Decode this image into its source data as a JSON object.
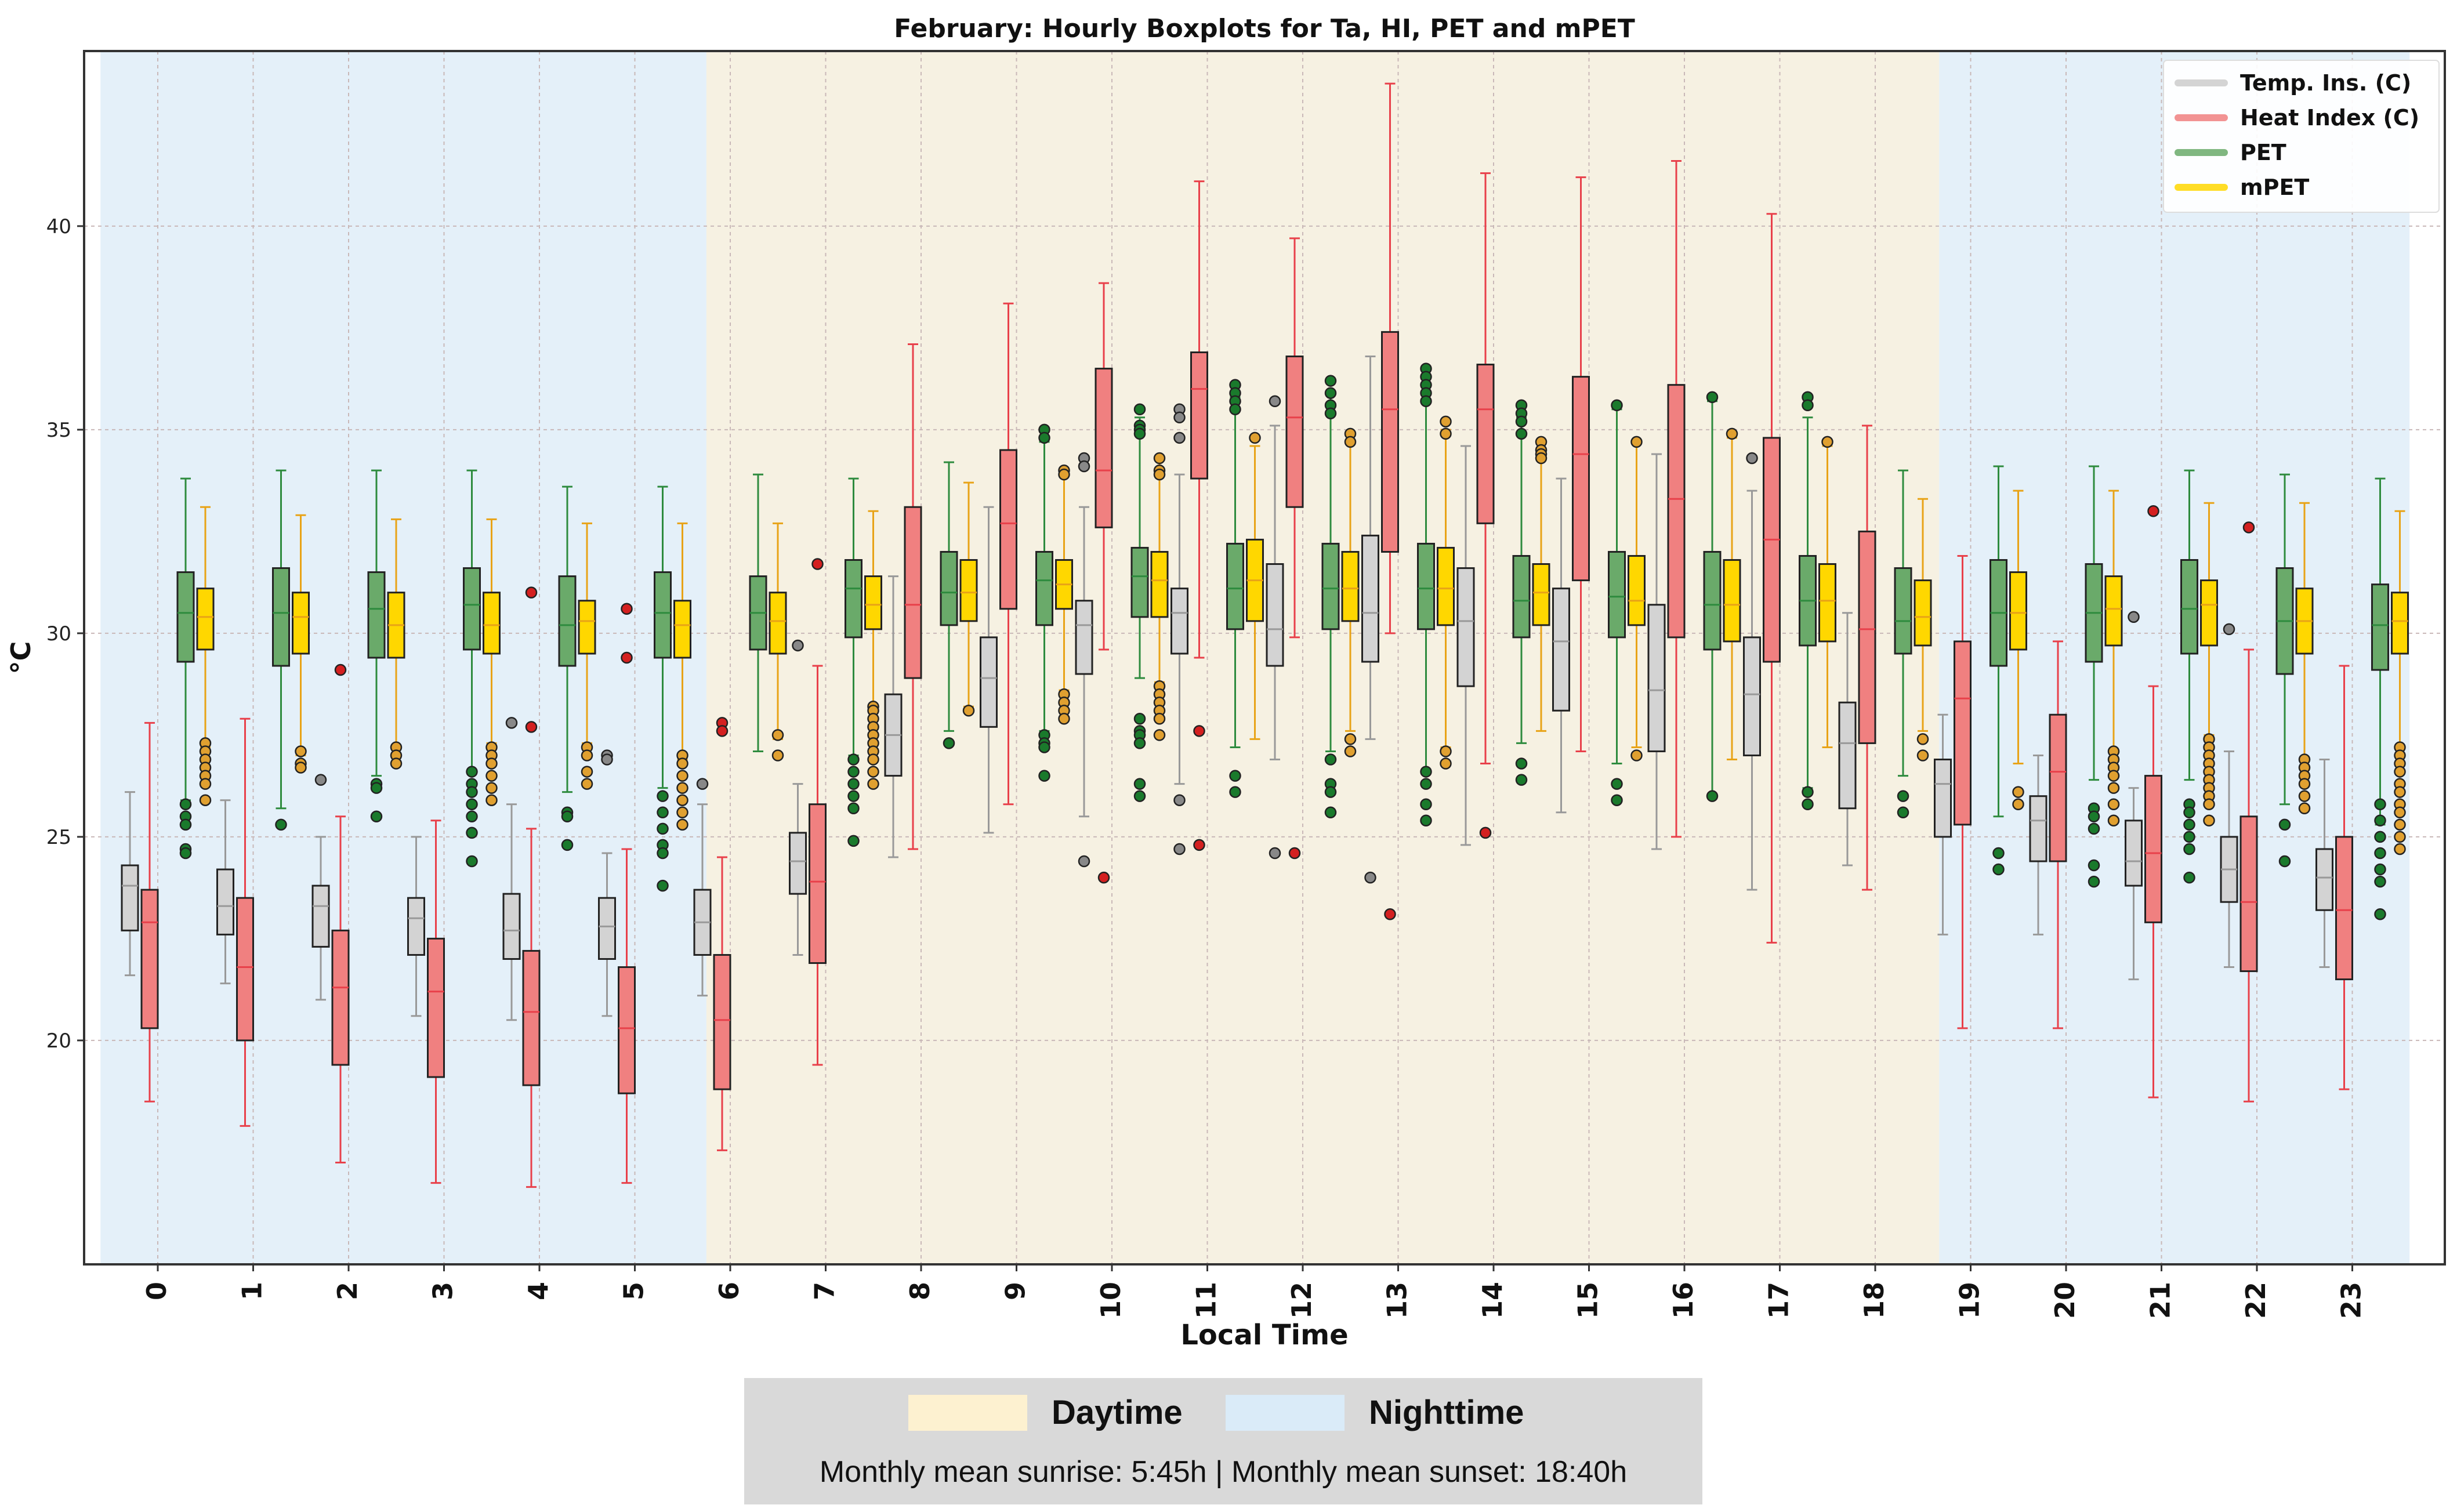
{
  "chart_data": {
    "type": "boxplot",
    "title": "February: Hourly Boxplots for Ta, HI, PET and mPET",
    "xlabel": "Local Time",
    "ylabel": "°C",
    "ylim": [
      14.5,
      44.3
    ],
    "yticks": [
      20,
      25,
      30,
      35,
      40
    ],
    "grid": true,
    "categories": [
      "0",
      "1",
      "2",
      "3",
      "4",
      "5",
      "6",
      "7",
      "8",
      "9",
      "10",
      "11",
      "12",
      "13",
      "14",
      "15",
      "16",
      "17",
      "18",
      "19",
      "20",
      "21",
      "22",
      "23"
    ],
    "background_periods": [
      {
        "name": "Nighttime",
        "from_hour": -0.6,
        "to_hour": 5.75
      },
      {
        "name": "Daytime",
        "from_hour": 5.75,
        "to_hour": 18.67
      },
      {
        "name": "Nighttime",
        "from_hour": 18.67,
        "to_hour": 23.6
      }
    ],
    "legend": {
      "placement": "top-right",
      "entries": [
        "Temp. Ins. (C)",
        "Heat Index (C)",
        "PET",
        "mPET"
      ]
    },
    "series": [
      {
        "name": "Temp. Ins. (C)",
        "short": "Ta",
        "fill": "#d3d3d3",
        "whisker": "#999999",
        "boxes": [
          [
            21.6,
            22.7,
            23.8,
            24.3,
            26.1
          ],
          [
            21.4,
            22.6,
            23.3,
            24.2,
            25.9
          ],
          [
            21.0,
            22.3,
            23.3,
            23.8,
            25.0
          ],
          [
            20.6,
            22.1,
            23.0,
            23.5,
            25.0
          ],
          [
            20.5,
            22.0,
            22.7,
            23.6,
            25.8
          ],
          [
            20.6,
            22.0,
            22.8,
            23.5,
            24.6
          ],
          [
            21.1,
            22.1,
            22.9,
            23.7,
            25.8
          ],
          [
            22.1,
            23.6,
            24.4,
            25.1,
            26.3
          ],
          [
            24.5,
            26.5,
            27.5,
            28.5,
            31.4
          ],
          [
            25.1,
            27.7,
            28.9,
            29.9,
            33.1
          ],
          [
            25.5,
            29.0,
            30.2,
            30.8,
            33.1
          ],
          [
            26.3,
            29.5,
            30.5,
            31.1,
            33.9
          ],
          [
            26.9,
            29.2,
            30.1,
            31.7,
            35.1
          ],
          [
            27.4,
            29.3,
            30.5,
            32.4,
            36.8
          ],
          [
            24.8,
            28.7,
            30.3,
            31.6,
            34.6
          ],
          [
            25.6,
            28.1,
            29.8,
            31.1,
            33.8
          ],
          [
            24.7,
            27.1,
            28.6,
            30.7,
            34.4
          ],
          [
            23.7,
            27.0,
            28.5,
            29.9,
            33.5
          ],
          [
            24.3,
            25.7,
            27.3,
            28.3,
            30.5
          ],
          [
            22.6,
            25.0,
            26.3,
            26.9,
            28.0
          ],
          [
            22.6,
            24.4,
            25.4,
            26.0,
            27.0
          ],
          [
            21.5,
            23.8,
            24.4,
            25.4,
            26.2
          ],
          [
            21.8,
            23.4,
            24.2,
            25.0,
            27.1
          ],
          [
            21.8,
            23.2,
            24.0,
            24.7,
            26.9
          ]
        ],
        "outliers": [
          [],
          [],
          [
            26.4
          ],
          [],
          [
            27.8
          ],
          [
            27.0,
            26.9
          ],
          [
            26.3
          ],
          [
            29.7
          ],
          [],
          [],
          [
            34.3,
            34.1,
            24.4
          ],
          [
            35.5,
            35.3,
            34.8,
            25.9,
            24.7
          ],
          [
            35.7,
            24.6
          ],
          [
            24.0
          ],
          [],
          [],
          [],
          [
            34.3
          ],
          [],
          [],
          [],
          [
            30.4
          ],
          [
            30.1
          ],
          []
        ]
      },
      {
        "name": "Heat Index (C)",
        "short": "HI",
        "fill": "#f08080",
        "whisker": "#e8404a",
        "boxes": [
          [
            18.5,
            20.3,
            22.9,
            23.7,
            27.8
          ],
          [
            17.9,
            20.0,
            21.8,
            23.5,
            27.9
          ],
          [
            17.0,
            19.4,
            21.3,
            22.7,
            25.5
          ],
          [
            16.5,
            19.1,
            21.2,
            22.5,
            25.4
          ],
          [
            16.4,
            18.9,
            20.7,
            22.2,
            25.2
          ],
          [
            16.5,
            18.7,
            20.3,
            21.8,
            24.7
          ],
          [
            17.3,
            18.8,
            20.5,
            22.1,
            24.5
          ],
          [
            19.4,
            21.9,
            23.9,
            25.8,
            29.2
          ],
          [
            24.7,
            28.9,
            30.7,
            33.1,
            37.1
          ],
          [
            25.8,
            30.6,
            32.7,
            34.5,
            38.1
          ],
          [
            29.6,
            32.6,
            34.0,
            36.5,
            38.6
          ],
          [
            29.4,
            33.8,
            36.0,
            36.9,
            41.1
          ],
          [
            29.9,
            33.1,
            35.3,
            36.8,
            39.7
          ],
          [
            30.0,
            32.0,
            35.5,
            37.4,
            43.5
          ],
          [
            26.8,
            32.7,
            35.5,
            36.6,
            41.3
          ],
          [
            27.1,
            31.3,
            34.4,
            36.3,
            41.2
          ],
          [
            25.0,
            29.9,
            33.3,
            36.1,
            41.6
          ],
          [
            22.4,
            29.3,
            32.3,
            34.8,
            40.3
          ],
          [
            23.7,
            27.3,
            30.1,
            32.5,
            35.1
          ],
          [
            20.3,
            25.3,
            28.4,
            29.8,
            31.9
          ],
          [
            20.3,
            24.4,
            26.6,
            28.0,
            29.8
          ],
          [
            18.6,
            22.9,
            24.6,
            26.5,
            28.7
          ],
          [
            18.5,
            21.7,
            23.4,
            25.5,
            29.6
          ],
          [
            18.8,
            21.5,
            23.2,
            25.0,
            29.2
          ]
        ],
        "outliers": [
          [],
          [],
          [
            29.1
          ],
          [],
          [
            31.0,
            27.7
          ],
          [
            30.6,
            29.4
          ],
          [
            27.8,
            27.6
          ],
          [
            31.7
          ],
          [],
          [],
          [
            24.0
          ],
          [
            27.6,
            24.8
          ],
          [
            24.6
          ],
          [
            23.1
          ],
          [
            25.1
          ],
          [],
          [],
          [],
          [],
          [],
          [],
          [
            33.0
          ],
          [
            32.6
          ],
          []
        ]
      },
      {
        "name": "PET",
        "short": "PET",
        "fill": "#6aaa6a",
        "whisker": "#2e8b3e",
        "boxes": [
          [
            25.9,
            29.3,
            30.5,
            31.5,
            33.8
          ],
          [
            25.7,
            29.2,
            30.5,
            31.6,
            34.0
          ],
          [
            26.5,
            29.4,
            30.6,
            31.5,
            34.0
          ],
          [
            26.6,
            29.6,
            30.7,
            31.6,
            34.0
          ],
          [
            26.1,
            29.2,
            30.2,
            31.4,
            33.6
          ],
          [
            26.2,
            29.4,
            30.5,
            31.5,
            33.6
          ],
          [
            27.1,
            29.6,
            30.5,
            31.4,
            33.9
          ],
          [
            27.0,
            29.9,
            31.1,
            31.8,
            33.8
          ],
          [
            27.6,
            30.2,
            31.0,
            32.0,
            34.2
          ],
          [
            27.6,
            30.2,
            31.3,
            32.0,
            34.7
          ],
          [
            28.9,
            30.4,
            31.4,
            32.1,
            35.3
          ],
          [
            27.2,
            30.1,
            31.1,
            32.2,
            35.8
          ],
          [
            27.1,
            30.1,
            31.1,
            32.2,
            35.9
          ],
          [
            26.6,
            30.1,
            31.1,
            32.2,
            36.1
          ],
          [
            27.3,
            29.9,
            30.8,
            31.9,
            35.3
          ],
          [
            26.8,
            29.9,
            30.9,
            32.0,
            35.5
          ],
          [
            26.0,
            29.6,
            30.7,
            32.0,
            35.7
          ],
          [
            26.2,
            29.7,
            30.8,
            31.9,
            35.3
          ],
          [
            26.5,
            29.5,
            30.3,
            31.6,
            34.0
          ],
          [
            25.5,
            29.2,
            30.5,
            31.8,
            34.1
          ],
          [
            26.4,
            29.3,
            30.5,
            31.7,
            34.1
          ],
          [
            26.4,
            29.5,
            30.6,
            31.8,
            34.0
          ],
          [
            25.8,
            29.0,
            30.3,
            31.6,
            33.9
          ],
          [
            25.3,
            29.1,
            30.2,
            31.2,
            33.8
          ]
        ],
        "outliers": [
          [
            25.8,
            25.5,
            25.3,
            24.7,
            24.6
          ],
          [
            25.3
          ],
          [
            26.3,
            26.2,
            25.5
          ],
          [
            26.6,
            26.3,
            26.1,
            25.8,
            25.5,
            25.1,
            24.4
          ],
          [
            25.6,
            25.5,
            24.8
          ],
          [
            26.0,
            25.6,
            25.2,
            24.8,
            24.6,
            23.8
          ],
          [],
          [
            26.9,
            26.6,
            26.3,
            26.0,
            25.7,
            24.9
          ],
          [
            27.3
          ],
          [
            35.0,
            34.8,
            27.5,
            27.3,
            27.2,
            26.5
          ],
          [
            35.5,
            35.1,
            35.0,
            34.9,
            27.9,
            27.6,
            27.5,
            27.3,
            26.3,
            26.0
          ],
          [
            36.1,
            35.9,
            35.7,
            35.5,
            26.5,
            26.1
          ],
          [
            36.2,
            35.9,
            35.6,
            35.4,
            26.9,
            26.3,
            26.1,
            25.6
          ],
          [
            36.5,
            36.3,
            36.1,
            35.9,
            35.7,
            26.6,
            26.3,
            25.8,
            25.4
          ],
          [
            35.6,
            35.4,
            35.2,
            34.9,
            26.8,
            26.4
          ],
          [
            35.6,
            26.3,
            25.9
          ],
          [
            35.8,
            26.0
          ],
          [
            35.8,
            35.6,
            26.1,
            25.8
          ],
          [
            26.0,
            25.6
          ],
          [
            24.6,
            24.2
          ],
          [
            25.7,
            25.5,
            25.2,
            24.3,
            23.9
          ],
          [
            25.8,
            25.6,
            25.3,
            25.0,
            24.7,
            24.0
          ],
          [
            25.3,
            24.4
          ],
          [
            25.8,
            25.4,
            25.0,
            24.6,
            24.2,
            23.9,
            23.1
          ]
        ]
      },
      {
        "name": "mPET",
        "short": "mPET",
        "fill": "#ffd700",
        "whisker": "#e8a317",
        "boxes": [
          [
            27.2,
            29.6,
            30.4,
            31.1,
            33.1
          ],
          [
            27.0,
            29.5,
            30.4,
            31.0,
            32.9
          ],
          [
            27.2,
            29.4,
            30.2,
            31.0,
            32.8
          ],
          [
            27.3,
            29.5,
            30.2,
            31.0,
            32.8
          ],
          [
            27.3,
            29.5,
            30.3,
            30.8,
            32.7
          ],
          [
            26.9,
            29.4,
            30.2,
            30.8,
            32.7
          ],
          [
            27.4,
            29.5,
            30.3,
            31.0,
            32.7
          ],
          [
            28.1,
            30.1,
            30.7,
            31.4,
            33.0
          ],
          [
            28.2,
            30.3,
            31.0,
            31.8,
            33.7
          ],
          [
            28.6,
            30.6,
            31.2,
            31.8,
            33.9
          ],
          [
            28.8,
            30.4,
            31.3,
            32.0,
            34.3
          ],
          [
            27.4,
            30.3,
            31.3,
            32.3,
            34.6
          ],
          [
            27.6,
            30.3,
            31.1,
            32.0,
            34.7
          ],
          [
            27.2,
            30.2,
            31.1,
            32.1,
            35.0
          ],
          [
            27.6,
            30.2,
            31.0,
            31.7,
            34.5
          ],
          [
            27.2,
            30.2,
            30.8,
            31.9,
            34.7
          ],
          [
            26.9,
            29.8,
            30.7,
            31.8,
            34.8
          ],
          [
            27.2,
            29.8,
            30.8,
            31.7,
            34.6
          ],
          [
            27.6,
            29.7,
            30.4,
            31.3,
            33.3
          ],
          [
            26.8,
            29.6,
            30.5,
            31.5,
            33.5
          ],
          [
            27.1,
            29.7,
            30.6,
            31.4,
            33.5
          ],
          [
            27.5,
            29.7,
            30.7,
            31.3,
            33.2
          ],
          [
            26.9,
            29.5,
            30.3,
            31.1,
            33.2
          ],
          [
            27.2,
            29.5,
            30.3,
            31.0,
            33.0
          ]
        ],
        "outliers": [
          [
            27.3,
            27.1,
            26.9,
            26.7,
            26.5,
            26.3,
            25.9
          ],
          [
            27.1,
            26.8,
            26.7
          ],
          [
            27.2,
            27.0,
            26.8
          ],
          [
            27.2,
            27.0,
            26.8,
            26.5,
            26.2,
            25.9
          ],
          [
            27.2,
            27.0,
            26.6,
            26.3
          ],
          [
            27.0,
            26.8,
            26.5,
            26.2,
            25.9,
            25.6,
            25.3
          ],
          [
            27.5,
            27.0
          ],
          [
            28.2,
            28.1,
            27.9,
            27.7,
            27.5,
            27.3,
            27.1,
            26.9,
            26.6,
            26.3
          ],
          [
            28.1
          ],
          [
            34.0,
            33.9,
            28.5,
            28.3,
            28.1,
            27.9
          ],
          [
            34.3,
            34.0,
            33.9,
            28.7,
            28.5,
            28.3,
            28.1,
            27.9,
            27.5
          ],
          [
            34.8
          ],
          [
            34.9,
            34.7,
            27.4,
            27.1
          ],
          [
            35.2,
            34.9,
            27.1,
            26.8
          ],
          [
            34.7,
            34.5,
            34.4,
            34.3
          ],
          [
            34.7,
            27.0
          ],
          [
            34.9
          ],
          [
            34.7
          ],
          [
            27.4,
            27.0
          ],
          [
            26.1,
            25.8
          ],
          [
            27.1,
            26.9,
            26.7,
            26.5,
            26.2,
            25.8,
            25.4
          ],
          [
            27.4,
            27.2,
            27.0,
            26.8,
            26.6,
            26.4,
            26.2,
            26.0,
            25.8,
            25.4
          ],
          [
            26.9,
            26.7,
            26.5,
            26.3,
            26.0,
            25.7
          ],
          [
            27.2,
            27.0,
            26.8,
            26.6,
            26.3,
            26.1,
            25.8,
            25.6,
            25.3,
            25.0,
            24.7
          ]
        ]
      }
    ]
  },
  "footer": {
    "daytime_label": "Daytime",
    "nighttime_label": "Nighttime",
    "daytime_color": "#fdf1d0",
    "nighttime_color": "#daebf8",
    "note": "Monthly mean sunrise: 5:45h | Monthly mean sunset: 18:40h"
  },
  "colors": {
    "night_band": "#e4f0f9",
    "day_band": "#f6f1e2",
    "grid": "#c9b8b8",
    "axis": "#333333"
  }
}
